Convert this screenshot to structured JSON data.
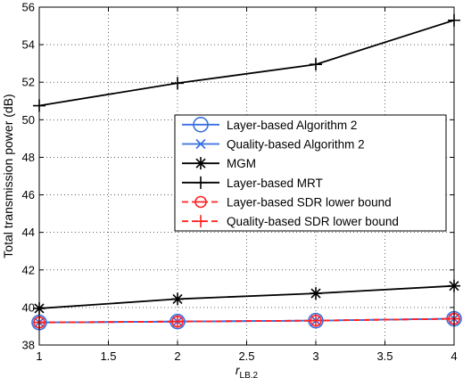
{
  "chart_data": {
    "type": "line",
    "title": "",
    "xlabel_main": "r",
    "xlabel_sub": "LB,2",
    "ylabel": "Total transmission power (dB)",
    "xlim": [
      1,
      4
    ],
    "ylim": [
      38,
      56
    ],
    "x_ticks": [
      1,
      1.5,
      2,
      2.5,
      3,
      3.5,
      4
    ],
    "x_tick_labels": [
      "1",
      "1.5",
      "2",
      "2.5",
      "3",
      "3.5",
      "4"
    ],
    "y_ticks": [
      38,
      40,
      42,
      44,
      46,
      48,
      50,
      52,
      54,
      56
    ],
    "y_tick_labels": [
      "38",
      "40",
      "42",
      "44",
      "46",
      "48",
      "50",
      "52",
      "54",
      "56"
    ],
    "grid": true,
    "legend_position": "center-right",
    "x": [
      1,
      2,
      3,
      4
    ],
    "series": [
      {
        "name": "Layer-based Algorithm 2",
        "values": [
          39.2,
          39.25,
          39.3,
          39.4
        ],
        "color": "#3a6fe0",
        "marker": "circle",
        "dash": "solid"
      },
      {
        "name": "Quality-based Algorithm 2",
        "values": [
          39.2,
          39.25,
          39.3,
          39.4
        ],
        "color": "#3a6fe0",
        "marker": "x",
        "dash": "solid"
      },
      {
        "name": "MGM",
        "values": [
          39.95,
          40.45,
          40.75,
          41.15
        ],
        "color": "#000000",
        "marker": "star",
        "dash": "solid"
      },
      {
        "name": "Layer-based MRT",
        "values": [
          50.75,
          51.95,
          52.95,
          55.3
        ],
        "color": "#000000",
        "marker": "plus",
        "dash": "solid"
      },
      {
        "name": "Layer-based SDR lower bound",
        "values": [
          39.2,
          39.25,
          39.3,
          39.4
        ],
        "color": "#ff2222",
        "marker": "circle-minus",
        "dash": "dashed"
      },
      {
        "name": "Quality-based SDR lower bound",
        "values": [
          39.2,
          39.25,
          39.3,
          39.4
        ],
        "color": "#ff2222",
        "marker": "plus",
        "dash": "dashed"
      }
    ]
  }
}
